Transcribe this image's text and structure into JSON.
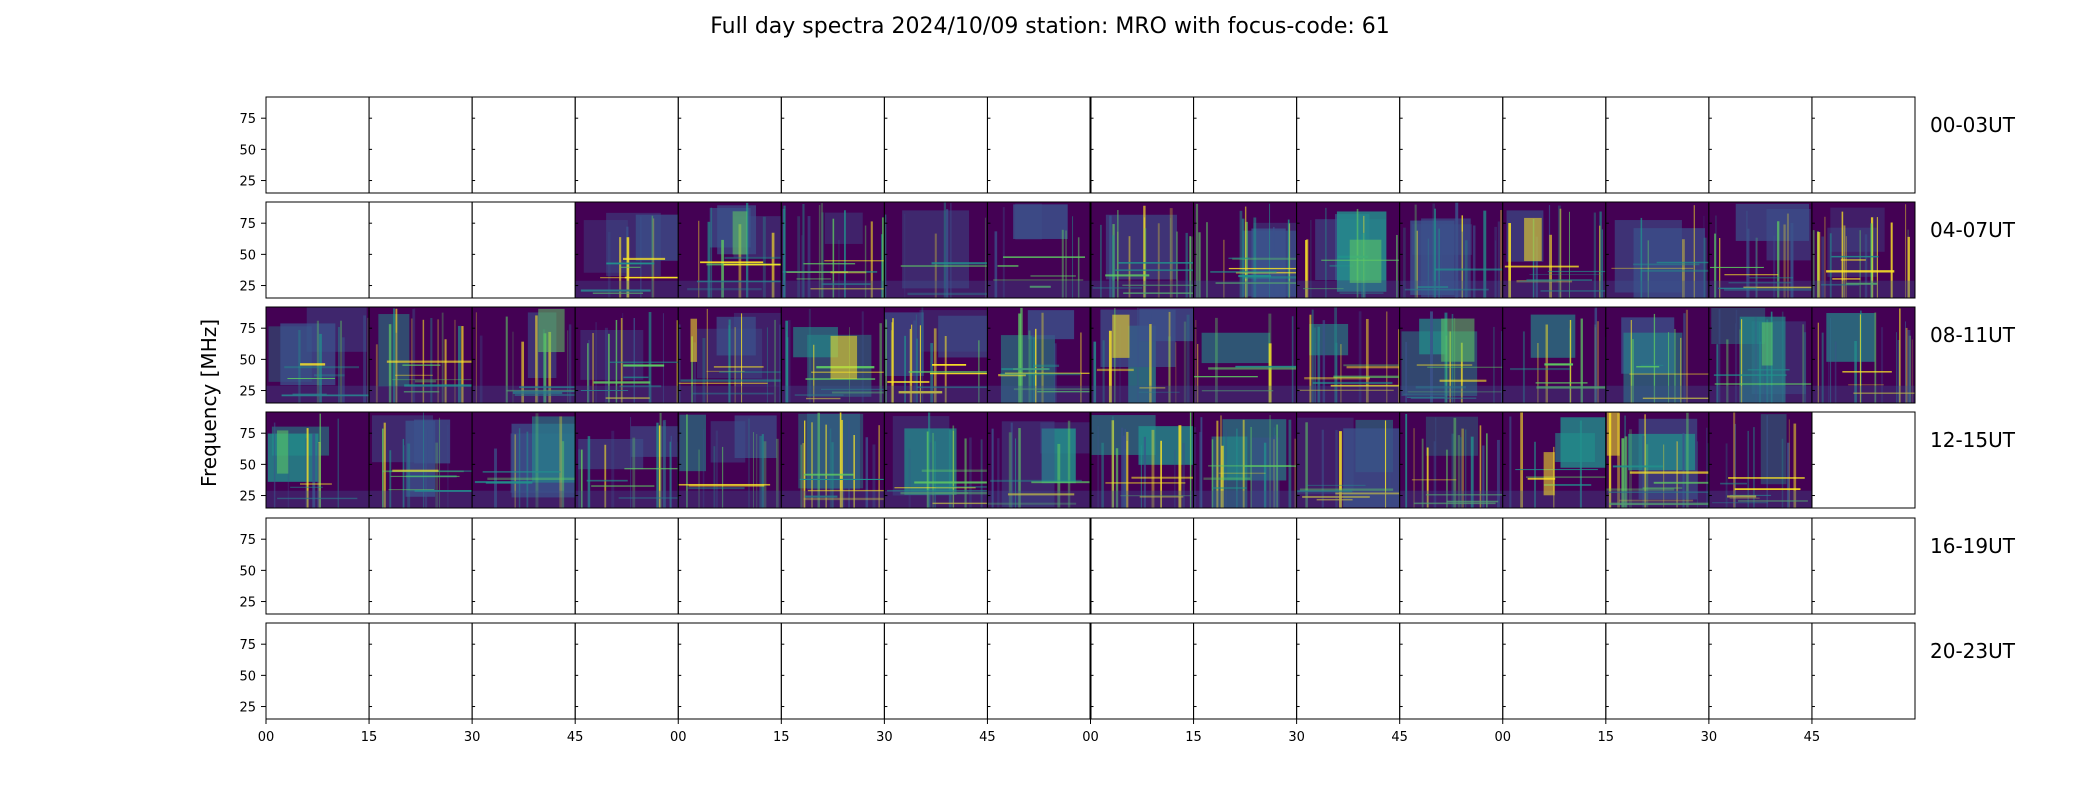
{
  "chart_data": {
    "type": "heatmap",
    "title": "Full day spectra 2024/10/09 station: MRO with focus-code: 61",
    "ylabel": "Frequency [MHz]",
    "yticks": [
      "75",
      "50",
      "25"
    ],
    "xticks": [
      "00",
      "15",
      "30",
      "45",
      "00",
      "15",
      "30",
      "45",
      "00",
      "15",
      "30",
      "45",
      "00",
      "15",
      "30",
      "45"
    ],
    "rows": [
      {
        "label": "00-03UT",
        "panels": [
          0,
          0,
          0,
          0,
          0,
          0,
          0,
          0,
          0,
          0,
          0,
          0,
          0,
          0,
          0,
          0
        ]
      },
      {
        "label": "04-07UT",
        "panels": [
          0,
          0,
          0,
          1,
          1,
          1,
          1,
          1,
          1,
          1,
          1,
          1,
          1,
          1,
          1,
          1
        ]
      },
      {
        "label": "08-11UT",
        "panels": [
          1,
          1,
          1,
          1,
          1,
          1,
          1,
          1,
          1,
          1,
          1,
          1,
          1,
          1,
          1,
          1
        ]
      },
      {
        "label": "12-15UT",
        "panels": [
          1,
          1,
          1,
          1,
          1,
          1,
          1,
          1,
          1,
          1,
          1,
          1,
          1,
          1,
          1,
          0
        ]
      },
      {
        "label": "16-19UT",
        "panels": [
          0,
          0,
          0,
          0,
          0,
          0,
          0,
          0,
          0,
          0,
          0,
          0,
          0,
          0,
          0,
          0
        ]
      },
      {
        "label": "20-23UT",
        "panels": [
          0,
          0,
          0,
          0,
          0,
          0,
          0,
          0,
          0,
          0,
          0,
          0,
          0,
          0,
          0,
          0
        ]
      }
    ],
    "colormap": [
      "#440154",
      "#3b528b",
      "#21918c",
      "#5ec962",
      "#fde725"
    ]
  }
}
